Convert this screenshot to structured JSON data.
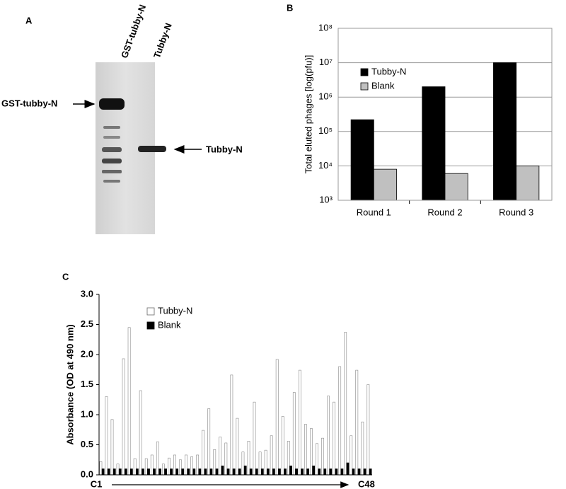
{
  "gel": {
    "panel_label": "A",
    "lanes": [
      "GST-tubby-N",
      "Tubby-N"
    ],
    "annotations": [
      "GST-tubby-N",
      "Tubby-N"
    ]
  },
  "chart_data": [
    {
      "type": "bar",
      "panel_label": "B",
      "ylabel": "Total eluted phages [log(pfu)]",
      "log_scale": true,
      "grid": true,
      "legend": "upper left",
      "categories": [
        "Round 1",
        "Round 2",
        "Round 3"
      ],
      "series": [
        {
          "name": "Tubby-N",
          "color": "#000000",
          "values": [
            220000,
            2000000,
            10000000
          ]
        },
        {
          "name": "Blank",
          "color": "#c0c0c0",
          "values": [
            8000,
            6000,
            10000
          ]
        }
      ],
      "ylim": [
        1000,
        100000000
      ],
      "yticks": [
        {
          "value": 1000,
          "label": "10³"
        },
        {
          "value": 10000,
          "label": "10⁴"
        },
        {
          "value": 100000,
          "label": "10⁵"
        },
        {
          "value": 1000000,
          "label": "10⁶"
        },
        {
          "value": 10000000,
          "label": "10⁷"
        },
        {
          "value": 100000000,
          "label": "10⁸"
        }
      ]
    },
    {
      "type": "bar",
      "panel_label": "C",
      "ylabel": "Absorbance (OD at 490 nm)",
      "log_scale": false,
      "grid": false,
      "legend": "upper left",
      "categories": [
        "C1",
        null,
        null,
        null,
        null,
        null,
        null,
        null,
        null,
        null,
        null,
        null,
        null,
        null,
        null,
        null,
        null,
        null,
        null,
        null,
        null,
        null,
        null,
        null,
        null,
        null,
        null,
        null,
        null,
        null,
        null,
        null,
        null,
        null,
        null,
        null,
        null,
        null,
        null,
        null,
        null,
        null,
        null,
        null,
        null,
        null,
        null,
        "C48"
      ],
      "series": [
        {
          "name": "Tubby-N",
          "color": "#ffffff",
          "values": [
            0.22,
            1.3,
            0.92,
            0.18,
            1.93,
            2.45,
            0.27,
            1.4,
            0.27,
            0.33,
            0.55,
            0.18,
            0.28,
            0.33,
            0.25,
            0.33,
            0.3,
            0.33,
            0.74,
            1.1,
            0.42,
            0.63,
            0.53,
            1.66,
            0.94,
            0.38,
            0.56,
            1.21,
            0.38,
            0.41,
            0.65,
            1.92,
            0.97,
            0.56,
            1.37,
            1.74,
            0.84,
            0.77,
            0.52,
            0.61,
            1.31,
            1.21,
            1.8,
            2.37,
            0.65,
            1.74,
            0.88,
            1.5
          ]
        },
        {
          "name": "Blank",
          "color": "#000000",
          "values": [
            0.1,
            0.1,
            0.1,
            0.1,
            0.1,
            0.1,
            0.1,
            0.1,
            0.1,
            0.1,
            0.1,
            0.1,
            0.1,
            0.1,
            0.1,
            0.1,
            0.1,
            0.1,
            0.1,
            0.1,
            0.1,
            0.15,
            0.1,
            0.1,
            0.1,
            0.15,
            0.1,
            0.1,
            0.1,
            0.1,
            0.1,
            0.1,
            0.1,
            0.15,
            0.1,
            0.1,
            0.1,
            0.15,
            0.1,
            0.1,
            0.1,
            0.1,
            0.1,
            0.2,
            0.1,
            0.1,
            0.1,
            0.1
          ]
        }
      ],
      "ylim": [
        0,
        3
      ],
      "yticks": [
        {
          "value": 0,
          "label": "0.0"
        },
        0.5,
        {
          "value": 1,
          "label": "1.0"
        },
        1.5,
        {
          "value": 2,
          "label": "2.0"
        },
        2.5,
        {
          "value": 3,
          "label": "3.0"
        }
      ]
    }
  ]
}
